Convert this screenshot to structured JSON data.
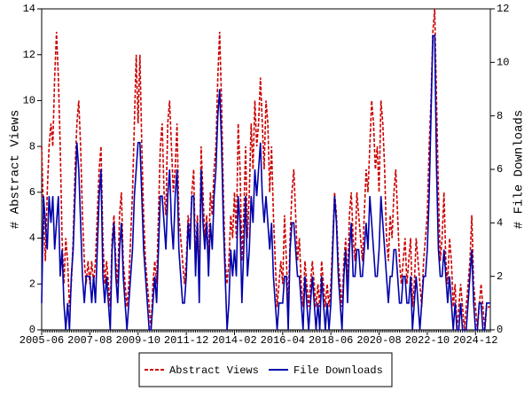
{
  "chart_data": {
    "type": "line",
    "y_label": "# Abstract Views",
    "y2_label": "# File Downloads",
    "categories": [
      "2005-06",
      null,
      null,
      null,
      null,
      null,
      null,
      null,
      null,
      null,
      null,
      null,
      null,
      null,
      null,
      null,
      null,
      null,
      null,
      null,
      null,
      null,
      null,
      null,
      null,
      null,
      "2007-08",
      null,
      null,
      null,
      null,
      null,
      null,
      null,
      null,
      null,
      null,
      null,
      null,
      null,
      null,
      null,
      null,
      null,
      null,
      null,
      null,
      null,
      null,
      null,
      null,
      null,
      "2009-10",
      null,
      null,
      null,
      null,
      null,
      null,
      null,
      null,
      null,
      null,
      null,
      null,
      null,
      null,
      null,
      null,
      null,
      null,
      null,
      null,
      null,
      null,
      null,
      null,
      null,
      "2011-12",
      null,
      null,
      null,
      null,
      null,
      null,
      null,
      null,
      null,
      null,
      null,
      null,
      null,
      null,
      null,
      null,
      null,
      null,
      null,
      null,
      null,
      null,
      null,
      null,
      null,
      "2014-02",
      null,
      null,
      null,
      null,
      null,
      null,
      null,
      null,
      null,
      null,
      null,
      null,
      null,
      null,
      null,
      null,
      null,
      null,
      null,
      null,
      null,
      null,
      null,
      null,
      null,
      "2016-04",
      null,
      null,
      null,
      null,
      null,
      null,
      null,
      null,
      null,
      null,
      null,
      null,
      null,
      null,
      null,
      null,
      null,
      null,
      null,
      null,
      null,
      null,
      null,
      null,
      null,
      "2018-06",
      null,
      null,
      null,
      null,
      null,
      null,
      null,
      null,
      null,
      null,
      null,
      null,
      null,
      null,
      null,
      null,
      null,
      null,
      null,
      null,
      null,
      null,
      null,
      null,
      null,
      "2020-08",
      null,
      null,
      null,
      null,
      null,
      null,
      null,
      null,
      null,
      null,
      null,
      null,
      null,
      null,
      null,
      null,
      null,
      null,
      null,
      null,
      null,
      null,
      null,
      null,
      null,
      "2022-10",
      null,
      null,
      null,
      null,
      null,
      null,
      null,
      null,
      null,
      null,
      null,
      null,
      null,
      null,
      null,
      null,
      null,
      null,
      null,
      null,
      null,
      null,
      null,
      null,
      null,
      "2024-12",
      null,
      null,
      null,
      null,
      null,
      null,
      null,
      null
    ],
    "series": [
      {
        "name": "Abstract Views",
        "color": "#cc0000",
        "dash": true,
        "axis": "y",
        "values": [
          8,
          5,
          3,
          6,
          8,
          9,
          8,
          11,
          13,
          11,
          8,
          4,
          2,
          4,
          3,
          1,
          2,
          4,
          7,
          9,
          10,
          8,
          5,
          3,
          2,
          3,
          2,
          3,
          2,
          3,
          5,
          7,
          8,
          4,
          2,
          3,
          2,
          1,
          4,
          5,
          3,
          2,
          5,
          6,
          3,
          2,
          1,
          2,
          4,
          6,
          9,
          12,
          9,
          12,
          8,
          5,
          3,
          2,
          1,
          0,
          2,
          3,
          2,
          5,
          8,
          9,
          6,
          5,
          9,
          10,
          8,
          6,
          7,
          9,
          5,
          4,
          3,
          2,
          3,
          5,
          4,
          6,
          7,
          3,
          5,
          2,
          8,
          6,
          4,
          5,
          3,
          6,
          5,
          7,
          8,
          11,
          13,
          10,
          6,
          3,
          2,
          3,
          5,
          4,
          6,
          4,
          9,
          7,
          3,
          5,
          8,
          4,
          6,
          9,
          7,
          10,
          8,
          9,
          11,
          9,
          7,
          10,
          9,
          6,
          8,
          5,
          3,
          1,
          2,
          3,
          2,
          5,
          3,
          1,
          4,
          6,
          7,
          5,
          3,
          4,
          2,
          1,
          3,
          2,
          1,
          2,
          3,
          2,
          1,
          2,
          1,
          3,
          2,
          1,
          2,
          1,
          2,
          4,
          6,
          5,
          3,
          2,
          1,
          3,
          4,
          2,
          5,
          6,
          4,
          3,
          6,
          5,
          4,
          3,
          5,
          7,
          6,
          8,
          10,
          9,
          7,
          8,
          6,
          10,
          9,
          7,
          4,
          3,
          5,
          4,
          6,
          7,
          5,
          3,
          2,
          3,
          4,
          2,
          3,
          4,
          1,
          2,
          4,
          3,
          2,
          1,
          3,
          4,
          5,
          8,
          10,
          13,
          14,
          10,
          6,
          3,
          4,
          6,
          3,
          2,
          4,
          3,
          1,
          2,
          0,
          1,
          2,
          1,
          0,
          1,
          2,
          3,
          5,
          2,
          1,
          0,
          1,
          2,
          1,
          0,
          1,
          1,
          1
        ]
      },
      {
        "name": "File Downloads",
        "color": "#0000aa",
        "dash": false,
        "axis": "y2",
        "values": [
          1,
          5,
          4,
          3,
          5,
          4,
          5,
          3,
          4,
          5,
          2,
          3,
          1,
          0,
          1,
          0,
          2,
          3,
          5,
          7,
          6,
          4,
          2,
          1,
          2,
          2,
          2,
          1,
          2,
          1,
          3,
          5,
          6,
          2,
          1,
          2,
          1,
          0,
          3,
          4,
          2,
          1,
          3,
          4,
          2,
          1,
          0,
          1,
          2,
          3,
          5,
          6,
          7,
          7,
          5,
          3,
          2,
          1,
          0,
          0,
          1,
          2,
          1,
          3,
          5,
          5,
          4,
          3,
          5,
          6,
          4,
          3,
          5,
          6,
          3,
          2,
          1,
          1,
          2,
          4,
          3,
          5,
          5,
          2,
          4,
          1,
          6,
          4,
          3,
          4,
          2,
          4,
          3,
          5,
          6,
          8,
          9,
          7,
          4,
          2,
          0,
          1,
          3,
          2,
          3,
          2,
          5,
          4,
          1,
          3,
          5,
          2,
          3,
          5,
          4,
          6,
          5,
          6,
          7,
          5,
          4,
          5,
          4,
          3,
          4,
          2,
          1,
          0,
          1,
          1,
          1,
          2,
          2,
          0,
          3,
          4,
          4,
          3,
          2,
          2,
          1,
          0,
          2,
          1,
          0,
          1,
          2,
          1,
          0,
          1,
          0,
          2,
          1,
          0,
          1,
          0,
          1,
          3,
          5,
          4,
          2,
          1,
          0,
          2,
          3,
          1,
          3,
          4,
          2,
          2,
          3,
          3,
          2,
          2,
          3,
          4,
          3,
          5,
          4,
          3,
          2,
          2,
          3,
          5,
          4,
          3,
          2,
          1,
          2,
          2,
          3,
          3,
          2,
          1,
          1,
          2,
          2,
          1,
          1,
          2,
          0,
          1,
          2,
          1,
          0,
          1,
          2,
          2,
          3,
          5,
          8,
          11,
          11,
          6,
          3,
          2,
          2,
          3,
          2,
          1,
          2,
          1,
          0,
          1,
          0,
          0,
          1,
          0,
          0,
          0,
          1,
          2,
          3,
          1,
          0,
          0,
          1,
          1,
          0,
          0,
          1,
          1,
          1
        ]
      }
    ],
    "ylim": [
      0,
      14
    ],
    "yticks": [
      0,
      2,
      4,
      6,
      8,
      10,
      12,
      14
    ],
    "y2lim": [
      0,
      12
    ],
    "y2ticks": [
      0,
      2,
      4,
      6,
      8,
      10,
      12
    ],
    "legend": "bottom"
  }
}
